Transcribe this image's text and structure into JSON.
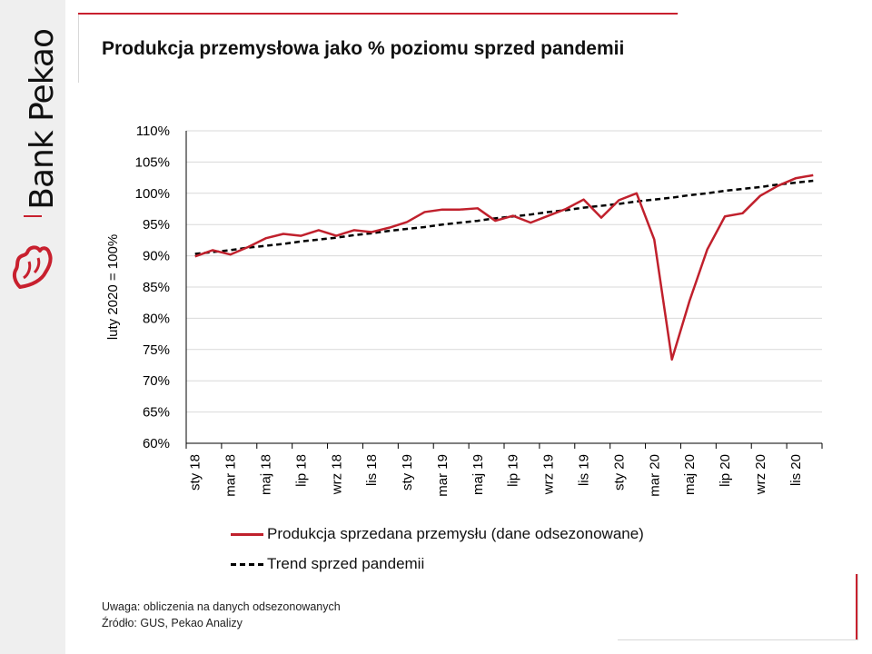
{
  "brand": {
    "name": "Bank Pekao"
  },
  "title": "Produkcja przemysłowa jako % poziomu sprzed pandemii",
  "colors": {
    "accent": "#c8202e",
    "production_line": "#c0202c",
    "trend_line": "#000000",
    "grid": "#d9d9d9"
  },
  "chart_data": {
    "type": "line",
    "ylabel": "luty 2020 = 100%",
    "ylim": [
      60,
      110
    ],
    "y_ticks": [
      "60%",
      "65%",
      "70%",
      "75%",
      "80%",
      "85%",
      "90%",
      "95%",
      "100%",
      "105%",
      "110%"
    ],
    "x_tick_labels": [
      "sty 18",
      "mar 18",
      "maj 18",
      "lip 18",
      "wrz 18",
      "lis 18",
      "sty 19",
      "mar 19",
      "maj 19",
      "lip 19",
      "wrz 19",
      "lis 19",
      "sty 20",
      "mar 20",
      "maj 20",
      "lip 20",
      "wrz 20",
      "lis 20"
    ],
    "x": [
      "sty 18",
      "lut 18",
      "mar 18",
      "kwi 18",
      "maj 18",
      "cze 18",
      "lip 18",
      "sie 18",
      "wrz 18",
      "paź 18",
      "lis 18",
      "gru 18",
      "sty 19",
      "lut 19",
      "mar 19",
      "kwi 19",
      "maj 19",
      "cze 19",
      "lip 19",
      "sie 19",
      "wrz 19",
      "paź 19",
      "lis 19",
      "gru 19",
      "sty 20",
      "lut 20",
      "mar 20",
      "kwi 20",
      "maj 20",
      "cze 20",
      "lip 20",
      "sie 20",
      "wrz 20",
      "paź 20",
      "lis 20",
      "gru 20"
    ],
    "grid": true,
    "legend_position": "bottom",
    "series": [
      {
        "name": "Produkcja sprzedana przemysłu (dane odsezonowane)",
        "style": "solid",
        "values": [
          89.9,
          90.9,
          90.2,
          91.4,
          92.8,
          93.5,
          93.2,
          94.1,
          93.2,
          94.1,
          93.8,
          94.5,
          95.4,
          97.0,
          97.4,
          97.4,
          97.6,
          95.6,
          96.4,
          95.3,
          96.4,
          97.5,
          99.0,
          96.1,
          98.9,
          100.0,
          92.6,
          73.4,
          82.8,
          91.0,
          96.3,
          96.8,
          99.6,
          101.2,
          102.4,
          102.9
        ]
      },
      {
        "name": "Trend sprzed pandemii",
        "style": "dashed",
        "values": [
          90.3,
          90.6,
          90.9,
          91.3,
          91.6,
          91.9,
          92.3,
          92.6,
          92.9,
          93.3,
          93.6,
          94.0,
          94.3,
          94.6,
          95.0,
          95.3,
          95.6,
          96.0,
          96.3,
          96.6,
          97.0,
          97.3,
          97.7,
          98.0,
          98.3,
          98.7,
          99.0,
          99.3,
          99.7,
          100.0,
          100.4,
          100.7,
          101.0,
          101.4,
          101.7,
          102.0
        ]
      }
    ]
  },
  "footer": {
    "note": "Uwaga: obliczenia na danych odsezonowanych",
    "source": "Źródło: GUS, Pekao Analizy"
  }
}
